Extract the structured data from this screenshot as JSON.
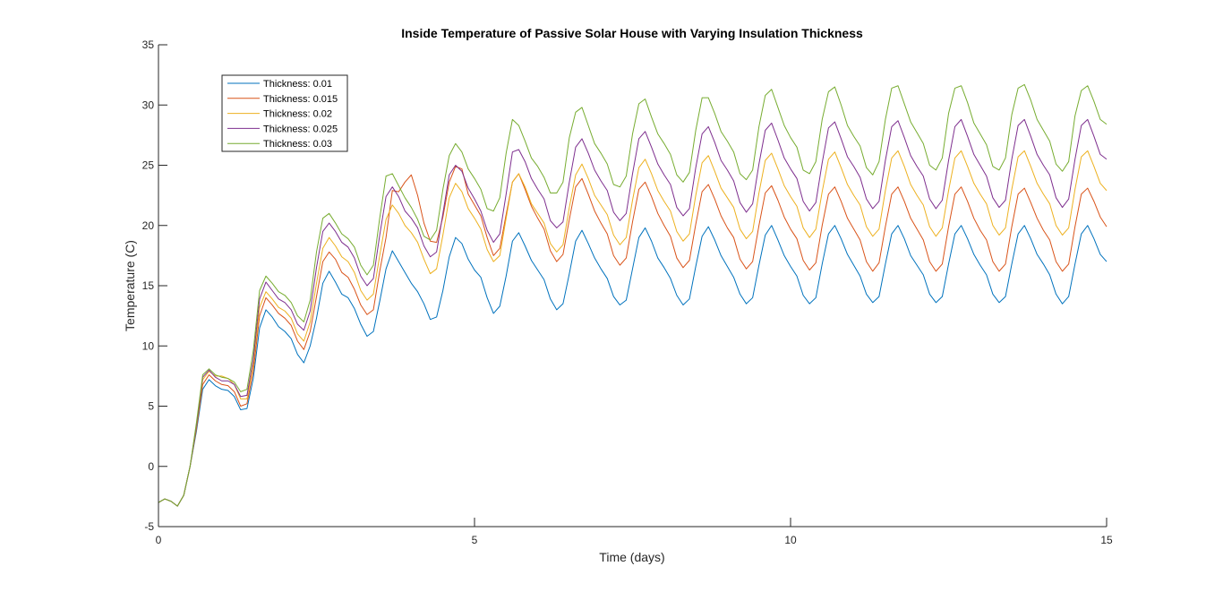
{
  "chart_data": {
    "type": "line",
    "title": "Inside Temperature of Passive Solar House with Varying Insulation Thickness",
    "xlabel": "Time (days)",
    "ylabel": "Temperature (C)",
    "xlim": [
      0,
      15
    ],
    "ylim": [
      -5,
      35
    ],
    "xticks": [
      0,
      5,
      10,
      15
    ],
    "yticks": [
      -5,
      0,
      5,
      10,
      15,
      20,
      25,
      30,
      35
    ],
    "grid": false,
    "legend_position": "top-left",
    "x": [
      0.0,
      0.1,
      0.2,
      0.3,
      0.4,
      0.5,
      0.6,
      0.7,
      0.8,
      0.9,
      1.0,
      1.1,
      1.2,
      1.3,
      1.4,
      1.5,
      1.6,
      1.7,
      1.8,
      1.9,
      2.0,
      2.1,
      2.2,
      2.3,
      2.4,
      2.5,
      2.6,
      2.7,
      2.8,
      2.9,
      3.0,
      3.1,
      3.2,
      3.3,
      3.4,
      3.5,
      3.6,
      3.7,
      3.8,
      3.9,
      4.0,
      4.1,
      4.2,
      4.3,
      4.4,
      4.5,
      4.6,
      4.7,
      4.8,
      4.9,
      5.0,
      5.1,
      5.2,
      5.3,
      5.4,
      5.5,
      5.6,
      5.7,
      5.8,
      5.9,
      6.0,
      6.1,
      6.2,
      6.3,
      6.4,
      6.5,
      6.6,
      6.7,
      6.8,
      6.9,
      7.0,
      7.1,
      7.2,
      7.3,
      7.4,
      7.5,
      7.6,
      7.7,
      7.8,
      7.9,
      8.0,
      8.1,
      8.2,
      8.3,
      8.4,
      8.5,
      8.6,
      8.7,
      8.8,
      8.9,
      9.0,
      9.1,
      9.2,
      9.3,
      9.4,
      9.5,
      9.6,
      9.7,
      9.8,
      9.9,
      10.0,
      10.1,
      10.2,
      10.3,
      10.4,
      10.5,
      10.6,
      10.7,
      10.8,
      10.9,
      11.0,
      11.1,
      11.2,
      11.3,
      11.4,
      11.5,
      11.6,
      11.7,
      11.8,
      11.9,
      12.0,
      12.1,
      12.2,
      12.3,
      12.4,
      12.5,
      12.6,
      12.7,
      12.8,
      12.9,
      13.0,
      13.1,
      13.2,
      13.3,
      13.4,
      13.5,
      13.6,
      13.7,
      13.8,
      13.9,
      14.0,
      14.1,
      14.2,
      14.3,
      14.4,
      14.5,
      14.6,
      14.7,
      14.8,
      14.9,
      15.0
    ],
    "series": [
      {
        "name": "Thickness: 0.01",
        "color": "#0072BD",
        "values": [
          -3.0,
          -2.7,
          -2.9,
          -3.3,
          -2.4,
          0.0,
          2.9,
          6.4,
          7.2,
          6.7,
          6.4,
          6.3,
          5.8,
          4.7,
          4.8,
          7.3,
          11.5,
          13.0,
          12.4,
          11.6,
          11.2,
          10.6,
          9.3,
          8.6,
          10.0,
          12.3,
          15.2,
          16.2,
          15.3,
          14.3,
          14.0,
          13.1,
          11.8,
          10.8,
          11.2,
          13.7,
          16.4,
          17.9,
          17.0,
          16.1,
          15.2,
          14.5,
          13.5,
          12.2,
          12.4,
          14.6,
          17.4,
          19.0,
          18.5,
          17.2,
          16.3,
          15.7,
          14.0,
          12.7,
          13.3,
          15.8,
          18.7,
          19.4,
          18.3,
          17.1,
          16.3,
          15.5,
          13.9,
          13.0,
          13.5,
          16.0,
          18.7,
          19.6,
          18.5,
          17.3,
          16.4,
          15.6,
          14.1,
          13.4,
          13.8,
          16.4,
          19.0,
          19.8,
          18.7,
          17.3,
          16.5,
          15.6,
          14.2,
          13.4,
          13.9,
          16.6,
          19.1,
          19.9,
          18.8,
          17.5,
          16.6,
          15.7,
          14.3,
          13.5,
          14.0,
          16.7,
          19.2,
          20.0,
          18.8,
          17.5,
          16.6,
          15.8,
          14.2,
          13.5,
          14.0,
          16.8,
          19.3,
          20.0,
          18.9,
          17.6,
          16.7,
          15.8,
          14.3,
          13.6,
          14.1,
          16.8,
          19.3,
          20.0,
          18.9,
          17.5,
          16.7,
          15.9,
          14.3,
          13.6,
          14.1,
          16.8,
          19.3,
          20.0,
          18.9,
          17.6,
          16.7,
          15.9,
          14.3,
          13.6,
          14.1,
          16.8,
          19.3,
          20.0,
          18.9,
          17.6,
          16.8,
          15.9,
          14.3,
          13.5,
          14.1,
          16.8,
          19.3,
          20.0,
          18.9,
          17.6,
          17.0
        ]
      },
      {
        "name": "Thickness: 0.015",
        "color": "#D95319",
        "values": [
          -3.0,
          -2.7,
          -2.9,
          -3.3,
          -2.4,
          0.0,
          3.1,
          6.8,
          7.6,
          7.1,
          6.8,
          6.7,
          6.2,
          5.0,
          5.2,
          7.9,
          12.5,
          14.0,
          13.4,
          12.7,
          12.3,
          11.7,
          10.4,
          9.7,
          11.2,
          14.1,
          17.0,
          17.8,
          17.2,
          16.1,
          15.7,
          14.7,
          13.4,
          12.6,
          13.0,
          16.2,
          19.0,
          22.9,
          22.8,
          23.6,
          24.2,
          22.5,
          20.2,
          18.7,
          18.6,
          20.7,
          23.6,
          24.9,
          24.7,
          22.6,
          21.7,
          20.8,
          19.0,
          17.5,
          18.1,
          20.9,
          23.6,
          24.3,
          23.0,
          21.6,
          20.6,
          19.7,
          17.9,
          17.0,
          17.6,
          20.5,
          23.2,
          23.9,
          22.6,
          21.2,
          20.2,
          19.3,
          17.5,
          16.7,
          17.3,
          20.3,
          23.0,
          23.6,
          22.4,
          21.0,
          20.0,
          19.1,
          17.3,
          16.5,
          17.1,
          20.1,
          22.8,
          23.4,
          22.2,
          20.8,
          19.8,
          19.0,
          17.2,
          16.4,
          17.0,
          20.0,
          22.7,
          23.3,
          22.1,
          20.7,
          19.7,
          18.9,
          17.1,
          16.3,
          16.9,
          20.0,
          22.6,
          23.2,
          22.0,
          20.6,
          19.7,
          18.8,
          17.0,
          16.2,
          16.9,
          19.9,
          22.6,
          23.2,
          22.0,
          20.6,
          19.7,
          18.8,
          17.0,
          16.2,
          16.8,
          19.9,
          22.6,
          23.2,
          22.0,
          20.6,
          19.6,
          18.8,
          17.0,
          16.2,
          16.8,
          19.9,
          22.6,
          23.1,
          21.9,
          20.6,
          19.6,
          18.8,
          17.0,
          16.2,
          16.8,
          19.9,
          22.6,
          23.1,
          22.0,
          20.7,
          19.9
        ]
      },
      {
        "name": "Thickness: 0.02",
        "color": "#EDB120",
        "values": [
          -3.0,
          -2.7,
          -2.9,
          -3.3,
          -2.4,
          0.0,
          3.3,
          7.2,
          7.9,
          7.5,
          7.5,
          7.3,
          6.8,
          5.6,
          5.6,
          8.5,
          13.2,
          14.5,
          13.9,
          13.2,
          12.9,
          12.3,
          11.0,
          10.4,
          12.0,
          15.2,
          18.1,
          19.0,
          18.3,
          17.4,
          17.0,
          16.1,
          14.6,
          13.8,
          14.3,
          17.5,
          20.5,
          21.7,
          21.0,
          20.0,
          19.4,
          18.6,
          17.2,
          16.0,
          16.4,
          19.2,
          22.3,
          23.5,
          22.8,
          21.4,
          20.6,
          19.7,
          18.0,
          17.0,
          17.5,
          20.6,
          23.6,
          24.3,
          23.2,
          21.8,
          21.0,
          20.2,
          18.5,
          17.8,
          18.4,
          21.5,
          24.2,
          25.1,
          23.9,
          22.5,
          21.7,
          20.9,
          19.2,
          18.4,
          19.0,
          22.1,
          24.8,
          25.5,
          24.3,
          22.9,
          22.0,
          21.2,
          19.5,
          18.7,
          19.3,
          22.5,
          25.2,
          25.8,
          24.5,
          23.1,
          22.3,
          21.5,
          19.7,
          18.9,
          19.5,
          22.7,
          25.4,
          26.0,
          24.7,
          23.3,
          22.4,
          21.6,
          19.8,
          19.0,
          19.7,
          22.8,
          25.5,
          26.1,
          24.8,
          23.4,
          22.5,
          21.7,
          19.9,
          19.1,
          19.7,
          22.9,
          25.6,
          26.2,
          24.9,
          23.4,
          22.5,
          21.7,
          19.9,
          19.1,
          19.8,
          22.9,
          25.6,
          26.2,
          24.9,
          23.5,
          22.6,
          21.8,
          20.0,
          19.2,
          19.8,
          23.0,
          25.7,
          26.2,
          24.9,
          23.5,
          22.6,
          21.8,
          20.0,
          19.2,
          19.8,
          23.0,
          25.7,
          26.2,
          24.9,
          23.5,
          22.9
        ]
      },
      {
        "name": "Thickness: 0.025",
        "color": "#7E2F8E",
        "values": [
          -3.0,
          -2.7,
          -2.9,
          -3.3,
          -2.4,
          0.0,
          3.4,
          7.4,
          8.0,
          7.4,
          7.1,
          7.1,
          6.8,
          5.8,
          5.9,
          8.9,
          13.9,
          15.3,
          14.6,
          13.9,
          13.6,
          13.0,
          11.8,
          11.3,
          12.9,
          16.5,
          19.5,
          20.2,
          19.5,
          18.6,
          18.2,
          17.3,
          15.8,
          15.0,
          15.6,
          19.2,
          22.4,
          23.2,
          22.4,
          21.2,
          20.6,
          19.8,
          18.3,
          17.4,
          17.8,
          21.0,
          24.2,
          25.0,
          24.5,
          23.1,
          22.2,
          21.2,
          19.6,
          18.6,
          19.3,
          22.6,
          26.1,
          26.3,
          25.3,
          23.9,
          23.0,
          22.2,
          20.4,
          19.8,
          20.3,
          23.6,
          26.5,
          27.2,
          26.0,
          24.6,
          23.7,
          22.9,
          21.1,
          20.4,
          21.0,
          24.3,
          27.2,
          27.8,
          26.5,
          25.1,
          24.2,
          23.4,
          21.5,
          20.8,
          21.4,
          24.8,
          27.6,
          28.2,
          26.9,
          25.4,
          24.6,
          23.7,
          21.9,
          21.1,
          21.8,
          25.1,
          27.9,
          28.5,
          27.1,
          25.6,
          24.7,
          23.9,
          22.0,
          21.2,
          21.9,
          25.2,
          28.1,
          28.6,
          27.2,
          25.7,
          24.9,
          24.0,
          22.2,
          21.4,
          22.0,
          25.4,
          28.2,
          28.7,
          27.3,
          25.8,
          24.9,
          24.1,
          22.2,
          21.4,
          22.1,
          25.4,
          28.2,
          28.8,
          27.4,
          25.9,
          25.0,
          24.1,
          22.3,
          21.5,
          22.1,
          25.5,
          28.3,
          28.8,
          27.4,
          25.9,
          25.0,
          24.2,
          22.3,
          21.5,
          22.2,
          25.5,
          28.3,
          28.8,
          27.4,
          25.9,
          25.5
        ]
      },
      {
        "name": "Thickness: 0.03",
        "color": "#77AC30",
        "values": [
          -3.0,
          -2.7,
          -2.9,
          -3.3,
          -2.4,
          0.0,
          3.6,
          7.6,
          8.1,
          7.6,
          7.4,
          7.3,
          7.0,
          6.2,
          6.4,
          9.6,
          14.6,
          15.8,
          15.2,
          14.5,
          14.2,
          13.6,
          12.5,
          12.0,
          13.8,
          17.8,
          20.6,
          21.0,
          20.2,
          19.3,
          18.9,
          18.2,
          16.7,
          15.9,
          16.7,
          20.6,
          24.1,
          24.3,
          23.3,
          22.3,
          21.5,
          20.5,
          19.1,
          18.8,
          19.6,
          23.0,
          25.8,
          26.8,
          26.1,
          24.7,
          23.9,
          23.0,
          21.4,
          21.2,
          22.3,
          26.0,
          28.8,
          28.3,
          27.0,
          25.6,
          24.9,
          24.0,
          22.7,
          22.7,
          23.6,
          27.3,
          29.4,
          29.8,
          28.3,
          26.8,
          26.0,
          25.1,
          23.4,
          23.2,
          24.1,
          27.6,
          30.1,
          30.5,
          29.0,
          27.6,
          26.8,
          25.9,
          24.2,
          23.6,
          24.4,
          27.9,
          30.6,
          30.6,
          29.3,
          27.8,
          27.0,
          26.1,
          24.3,
          23.8,
          24.6,
          28.2,
          30.8,
          31.3,
          29.8,
          28.3,
          27.3,
          26.5,
          24.6,
          24.3,
          25.3,
          28.8,
          31.1,
          31.5,
          30.0,
          28.3,
          27.4,
          26.6,
          24.8,
          24.2,
          25.3,
          28.8,
          31.4,
          31.6,
          30.1,
          28.6,
          27.7,
          26.8,
          25.0,
          24.6,
          25.6,
          29.3,
          31.4,
          31.6,
          30.2,
          28.5,
          27.6,
          26.7,
          24.9,
          24.6,
          25.6,
          29.2,
          31.4,
          31.7,
          30.4,
          28.8,
          27.9,
          27.0,
          25.1,
          24.5,
          25.3,
          29.1,
          31.2,
          31.6,
          30.3,
          28.8,
          28.4
        ]
      }
    ]
  }
}
